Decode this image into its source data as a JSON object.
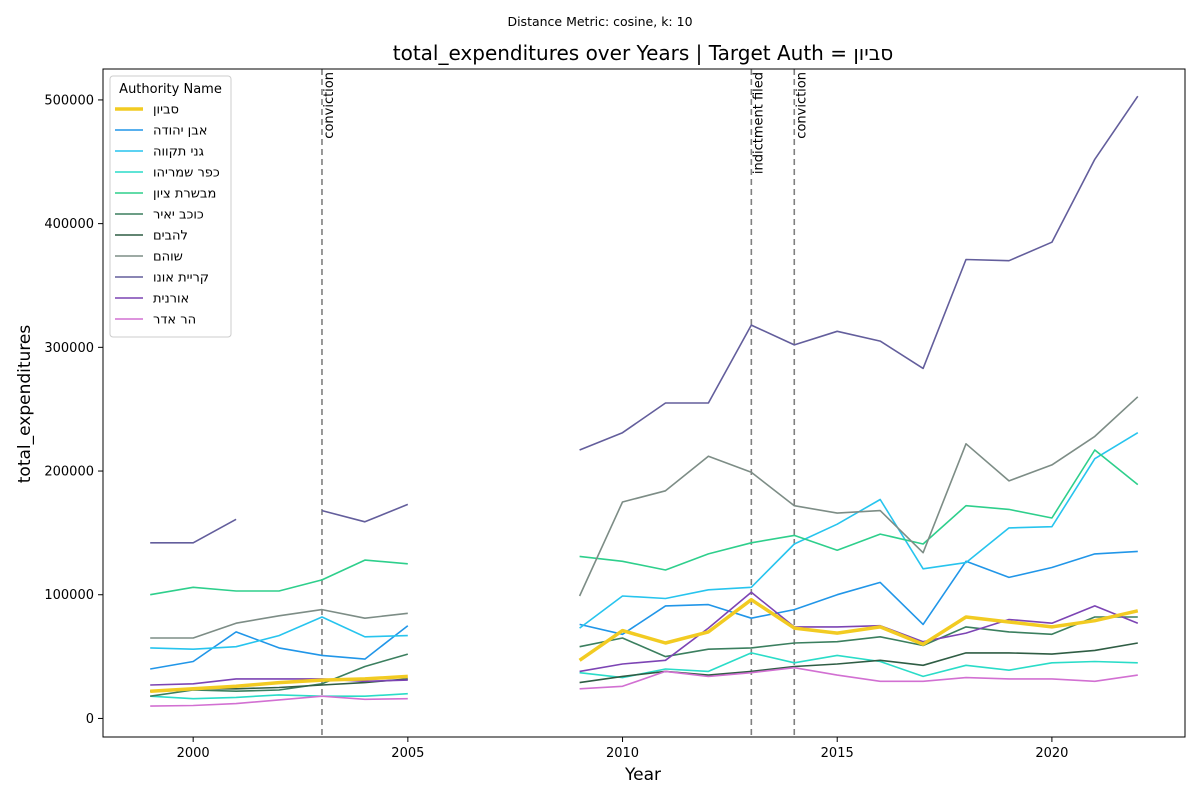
{
  "chart_data": {
    "type": "line",
    "suptitle": "Distance Metric: cosine, k: 10",
    "title": "total_expenditures over Years | Target Auth = סביון",
    "xlabel": "Year",
    "ylabel": "total_expenditures",
    "xlim": [
      1997.9,
      2023.1
    ],
    "ylim": [
      -15000,
      525000
    ],
    "xticks": [
      2000,
      2005,
      2010,
      2015,
      2020
    ],
    "yticks": [
      0,
      100000,
      200000,
      300000,
      400000,
      500000
    ],
    "grid": false,
    "legend": {
      "title": "Authority Name",
      "placement": "top-left"
    },
    "events": [
      {
        "x": 2003,
        "label": "conviction"
      },
      {
        "x": 2013,
        "label": "indictment filed"
      },
      {
        "x": 2014,
        "label": "conviction"
      }
    ],
    "x": [
      1999,
      2000,
      2001,
      2002,
      2003,
      2004,
      2005,
      2006,
      2007,
      2008,
      2009,
      2010,
      2011,
      2012,
      2013,
      2014,
      2015,
      2016,
      2017,
      2018,
      2019,
      2020,
      2021,
      2022
    ],
    "series": [
      {
        "name": "סביון",
        "color": "#f2cb22",
        "width": 3.5,
        "values": [
          22000,
          24000,
          26000,
          29000,
          31000,
          32000,
          34000,
          null,
          null,
          null,
          47000,
          71000,
          61000,
          70000,
          96000,
          73000,
          69000,
          74000,
          60000,
          82000,
          78000,
          74000,
          79000,
          87000
        ]
      },
      {
        "name": "אבן יהודה",
        "color": "#2196e8",
        "width": 1.6,
        "values": [
          40000,
          46000,
          70000,
          57000,
          51000,
          48000,
          75000,
          null,
          null,
          null,
          76000,
          68000,
          91000,
          92000,
          81000,
          88000,
          100000,
          110000,
          76000,
          127000,
          114000,
          122000,
          133000,
          135000
        ]
      },
      {
        "name": "גני תקווה",
        "color": "#27c4ee",
        "width": 1.6,
        "values": [
          57000,
          56000,
          58000,
          67000,
          82000,
          66000,
          67000,
          null,
          null,
          null,
          73000,
          99000,
          97000,
          104000,
          106000,
          141000,
          157000,
          177000,
          121000,
          126000,
          154000,
          155000,
          210000,
          231000
        ]
      },
      {
        "name": "כפר שמריהו",
        "color": "#2adcc8",
        "width": 1.6,
        "values": [
          18000,
          16000,
          17000,
          19000,
          18000,
          18000,
          20000,
          null,
          null,
          null,
          37000,
          33000,
          40000,
          38000,
          53000,
          45000,
          51000,
          46000,
          34000,
          43000,
          39000,
          45000,
          46000,
          45000
        ]
      },
      {
        "name": "מבשרת ציון",
        "color": "#2ecf8c",
        "width": 1.6,
        "values": [
          100000,
          106000,
          103000,
          103000,
          112000,
          128000,
          125000,
          null,
          null,
          null,
          131000,
          127000,
          120000,
          133000,
          142000,
          148000,
          136000,
          149000,
          141000,
          172000,
          169000,
          162000,
          217000,
          189000
        ]
      },
      {
        "name": "כוכב יאיר",
        "color": "#3b7f5f",
        "width": 1.6,
        "values": [
          18000,
          23000,
          22000,
          23000,
          28000,
          42000,
          52000,
          null,
          null,
          null,
          58000,
          65000,
          50000,
          56000,
          57000,
          61000,
          62000,
          66000,
          59000,
          74000,
          70000,
          68000,
          82000,
          82000
        ]
      },
      {
        "name": "להבים",
        "color": "#2f5d44",
        "width": 1.6,
        "values": [
          22000,
          24000,
          24000,
          25000,
          27000,
          29000,
          32000,
          null,
          null,
          null,
          29000,
          34000,
          38000,
          35000,
          38000,
          42000,
          44000,
          47000,
          43000,
          53000,
          53000,
          52000,
          55000,
          61000
        ]
      },
      {
        "name": "שוהם",
        "color": "#7d8d86",
        "width": 1.6,
        "values": [
          65000,
          65000,
          77000,
          83000,
          88000,
          81000,
          85000,
          null,
          null,
          null,
          99000,
          175000,
          184000,
          212000,
          199000,
          172000,
          166000,
          168000,
          134000,
          222000,
          192000,
          205000,
          228000,
          260000
        ]
      },
      {
        "name": "קריית אונו",
        "color": "#635e9c",
        "width": 1.6,
        "values": [
          142000,
          142000,
          161000,
          null,
          168000,
          159000,
          173000,
          null,
          null,
          null,
          217000,
          231000,
          255000,
          255000,
          318000,
          302000,
          313000,
          305000,
          283000,
          371000,
          370000,
          385000,
          452000,
          503000
        ]
      },
      {
        "name": "אורנית",
        "color": "#7c44b4",
        "width": 1.6,
        "values": [
          27000,
          28000,
          32000,
          32000,
          32000,
          30000,
          31000,
          null,
          null,
          null,
          38000,
          44000,
          47000,
          73000,
          102000,
          74000,
          74000,
          75000,
          62000,
          69000,
          80000,
          77000,
          91000,
          77000
        ]
      },
      {
        "name": "הר אדר",
        "color": "#d270d2",
        "width": 1.6,
        "values": [
          10000,
          10500,
          12000,
          15000,
          18000,
          15500,
          16000,
          null,
          null,
          null,
          24000,
          26000,
          38000,
          34000,
          37000,
          41000,
          35000,
          30000,
          30000,
          33000,
          32000,
          32000,
          30000,
          35000
        ]
      }
    ]
  }
}
